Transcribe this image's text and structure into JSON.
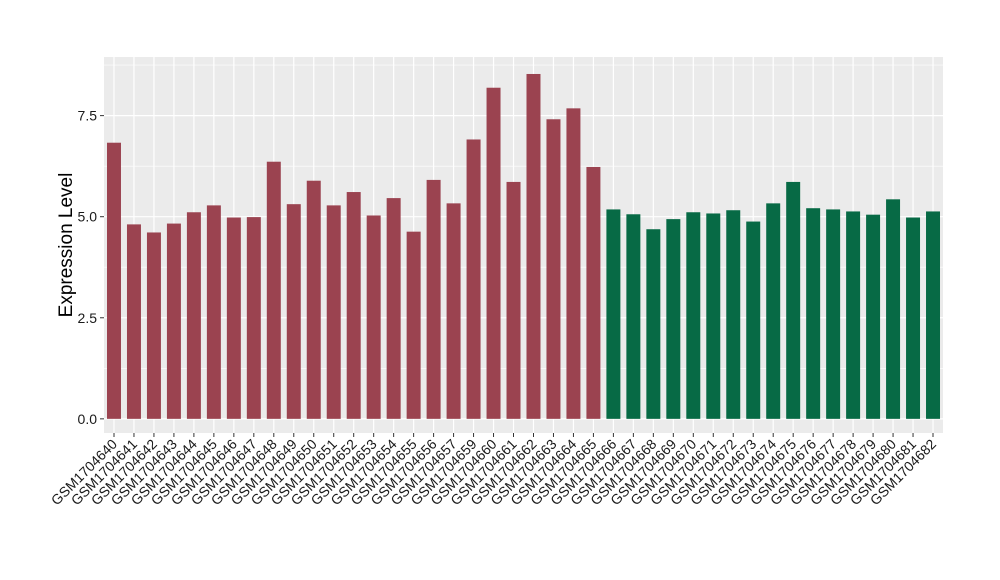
{
  "chart_data": {
    "type": "bar",
    "title": "",
    "xlabel": "",
    "ylabel": "Expression Level",
    "ylim": [
      -0.35,
      8.95
    ],
    "yticks": [
      0.0,
      2.5,
      5.0,
      7.5
    ],
    "ytick_labels": [
      "0.0",
      "2.5",
      "5.0",
      "7.5"
    ],
    "grid": true,
    "legend": "none",
    "colors": {
      "group_a": "#9b4350",
      "group_b": "#076a45",
      "panel": "#ebebeb",
      "grid": "#ffffff"
    },
    "categories": [
      "GSM1704640",
      "GSM1704641",
      "GSM1704642",
      "GSM1704643",
      "GSM1704644",
      "GSM1704645",
      "GSM1704646",
      "GSM1704647",
      "GSM1704648",
      "GSM1704649",
      "GSM1704650",
      "GSM1704651",
      "GSM1704652",
      "GSM1704653",
      "GSM1704654",
      "GSM1704655",
      "GSM1704656",
      "GSM1704657",
      "GSM1704659",
      "GSM1704660",
      "GSM1704661",
      "GSM1704662",
      "GSM1704663",
      "GSM1704664",
      "GSM1704665",
      "GSM1704666",
      "GSM1704667",
      "GSM1704668",
      "GSM1704669",
      "GSM1704670",
      "GSM1704671",
      "GSM1704672",
      "GSM1704673",
      "GSM1704674",
      "GSM1704675",
      "GSM1704676",
      "GSM1704677",
      "GSM1704678",
      "GSM1704679",
      "GSM1704680",
      "GSM1704681",
      "GSM1704682"
    ],
    "values": [
      6.83,
      4.81,
      4.61,
      4.83,
      5.11,
      5.28,
      4.98,
      4.99,
      6.36,
      5.31,
      5.89,
      5.28,
      5.61,
      5.03,
      5.46,
      4.63,
      5.91,
      5.33,
      6.91,
      8.19,
      5.86,
      8.53,
      7.41,
      7.68,
      6.23,
      5.18,
      5.06,
      4.69,
      4.94,
      5.11,
      5.08,
      5.16,
      4.88,
      5.33,
      5.86,
      5.21,
      5.18,
      5.13,
      5.05,
      5.43,
      4.98,
      5.13
    ],
    "groups": [
      "a",
      "a",
      "a",
      "a",
      "a",
      "a",
      "a",
      "a",
      "a",
      "a",
      "a",
      "a",
      "a",
      "a",
      "a",
      "a",
      "a",
      "a",
      "a",
      "a",
      "a",
      "a",
      "a",
      "a",
      "a",
      "b",
      "b",
      "b",
      "b",
      "b",
      "b",
      "b",
      "b",
      "b",
      "b",
      "b",
      "b",
      "b",
      "b",
      "b",
      "b",
      "b"
    ]
  }
}
